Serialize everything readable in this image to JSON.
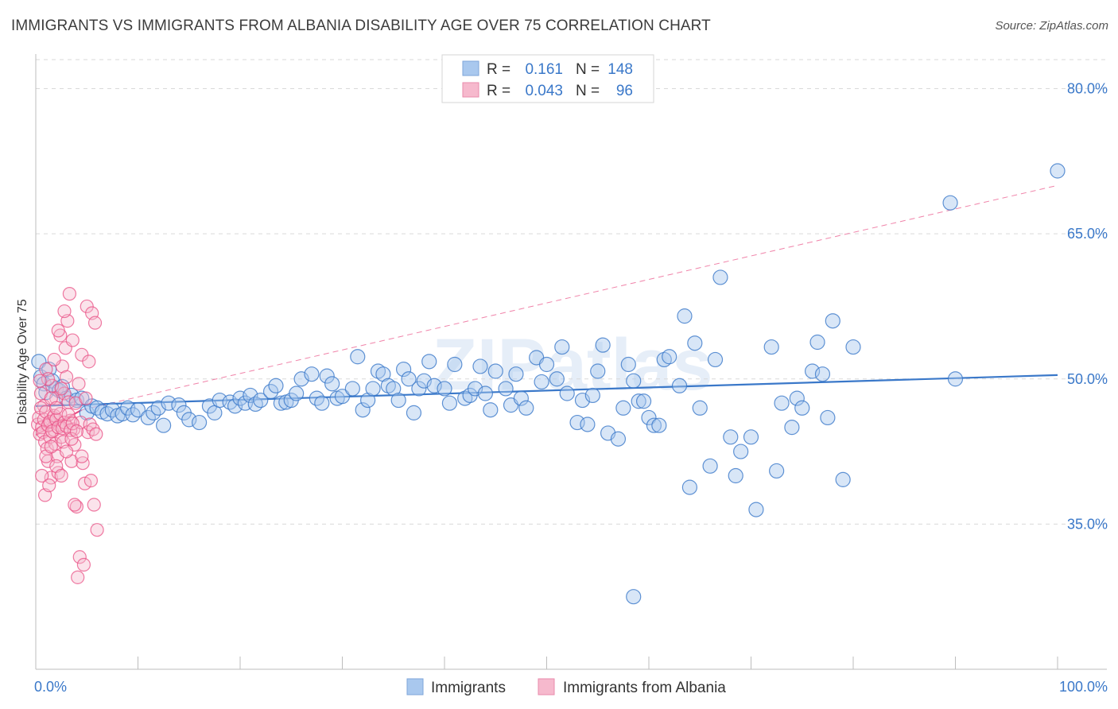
{
  "title": "IMMIGRANTS VS IMMIGRANTS FROM ALBANIA DISABILITY AGE OVER 75 CORRELATION CHART",
  "source": "Source: ZipAtlas.com",
  "watermark": "ZIPatlas",
  "legend_box": {
    "rows": [
      {
        "r_label": "R =",
        "r_value": "0.161",
        "n_label": "N =",
        "n_value": "148"
      },
      {
        "r_label": "R =",
        "r_value": "0.043",
        "n_label": "N =",
        "n_value": "96"
      }
    ]
  },
  "bottom_legend": [
    "Immigrants",
    "Immigrants from Albania"
  ],
  "colors": {
    "blue": "#3a78c9",
    "blue_fill": "#a9c8ee",
    "pink": "#e94f84",
    "pink_fill": "#f6b9cd",
    "grid": "#d9d9d9"
  },
  "chart_data": {
    "type": "scatter",
    "xlabel": "",
    "ylabel": "Disability Age Over 75",
    "xlim": [
      0,
      100
    ],
    "ylim": [
      20,
      83
    ],
    "x_tick_labels": [
      "0.0%",
      "100.0%"
    ],
    "y_ticks": [
      35,
      50,
      65,
      80
    ],
    "y_tick_labels": [
      "35.0%",
      "50.0%",
      "65.0%",
      "80.0%"
    ],
    "grid": true,
    "legend_position": "top-center",
    "series": [
      {
        "name": "Immigrants",
        "r": 0.161,
        "n": 148,
        "color": "#3a78c9",
        "trend": {
          "x": [
            0,
            100
          ],
          "y": [
            47.2,
            50.4
          ]
        },
        "points": [
          [
            0.3,
            51.8
          ],
          [
            0.5,
            50.2
          ],
          [
            0.8,
            49.5
          ],
          [
            1,
            48.6
          ],
          [
            1.3,
            51
          ],
          [
            1.6,
            49.8
          ],
          [
            2,
            49
          ],
          [
            2.3,
            48.8
          ],
          [
            2.6,
            49.2
          ],
          [
            3,
            48
          ],
          [
            3.5,
            48.3
          ],
          [
            4,
            47.8
          ],
          [
            4.5,
            48
          ],
          [
            5,
            46.5
          ],
          [
            5.5,
            47.2
          ],
          [
            6,
            47
          ],
          [
            6.5,
            46.6
          ],
          [
            7,
            46.4
          ],
          [
            7.5,
            46.8
          ],
          [
            8,
            46.2
          ],
          [
            8.5,
            46.4
          ],
          [
            9,
            47
          ],
          [
            9.5,
            46.3
          ],
          [
            10,
            46.8
          ],
          [
            11,
            46
          ],
          [
            11.5,
            46.5
          ],
          [
            12,
            47
          ],
          [
            12.5,
            45.2
          ],
          [
            13,
            47.5
          ],
          [
            14,
            47.3
          ],
          [
            14.5,
            46.5
          ],
          [
            15,
            45.8
          ],
          [
            16,
            45.5
          ],
          [
            17,
            47.2
          ],
          [
            17.5,
            46.5
          ],
          [
            18,
            47.8
          ],
          [
            19,
            47.6
          ],
          [
            19.5,
            47.2
          ],
          [
            20,
            48
          ],
          [
            20.5,
            47.5
          ],
          [
            21,
            48.3
          ],
          [
            21.5,
            47.4
          ],
          [
            22,
            47.8
          ],
          [
            23,
            48.7
          ],
          [
            23.5,
            49.3
          ],
          [
            24,
            47.5
          ],
          [
            24.5,
            47.6
          ],
          [
            25,
            47.8
          ],
          [
            25.5,
            48.5
          ],
          [
            26,
            50
          ],
          [
            27,
            50.5
          ],
          [
            27.5,
            48
          ],
          [
            28,
            47.5
          ],
          [
            28.5,
            50.3
          ],
          [
            29,
            49.5
          ],
          [
            29.5,
            48
          ],
          [
            30,
            48.2
          ],
          [
            31,
            49
          ],
          [
            31.5,
            52.3
          ],
          [
            32,
            46.8
          ],
          [
            32.5,
            47.8
          ],
          [
            33,
            49
          ],
          [
            33.5,
            50.8
          ],
          [
            34,
            50.5
          ],
          [
            34.5,
            49.3
          ],
          [
            35,
            49
          ],
          [
            35.5,
            47.8
          ],
          [
            36,
            51
          ],
          [
            36.5,
            50
          ],
          [
            37,
            46.5
          ],
          [
            37.5,
            49
          ],
          [
            38,
            49.8
          ],
          [
            38.5,
            51.8
          ],
          [
            39,
            49.3
          ],
          [
            40,
            49
          ],
          [
            40.5,
            47.5
          ],
          [
            41,
            51.5
          ],
          [
            42,
            48
          ],
          [
            42.5,
            48.3
          ],
          [
            43,
            49
          ],
          [
            43.5,
            51.3
          ],
          [
            44,
            48.5
          ],
          [
            44.5,
            46.8
          ],
          [
            45,
            50.8
          ],
          [
            46,
            49
          ],
          [
            46.5,
            47.3
          ],
          [
            47,
            50.5
          ],
          [
            47.5,
            48
          ],
          [
            48,
            47
          ],
          [
            49,
            52.2
          ],
          [
            49.5,
            49.7
          ],
          [
            50,
            51.5
          ],
          [
            51,
            50
          ],
          [
            51.5,
            53.3
          ],
          [
            52,
            48.5
          ],
          [
            53,
            45.5
          ],
          [
            53.5,
            47.8
          ],
          [
            54,
            45.3
          ],
          [
            54.5,
            48.3
          ],
          [
            55,
            50.8
          ],
          [
            55.5,
            53.5
          ],
          [
            56,
            44.4
          ],
          [
            57,
            43.8
          ],
          [
            57.5,
            47
          ],
          [
            58,
            51.5
          ],
          [
            58.5,
            49.8
          ],
          [
            59,
            47.7
          ],
          [
            59.5,
            47.7
          ],
          [
            60,
            46
          ],
          [
            60.5,
            45.2
          ],
          [
            61,
            45.2
          ],
          [
            61.5,
            52
          ],
          [
            62,
            52.3
          ],
          [
            63,
            49.3
          ],
          [
            63.5,
            56.5
          ],
          [
            64,
            38.8
          ],
          [
            64.5,
            53.7
          ],
          [
            65,
            47
          ],
          [
            66,
            41
          ],
          [
            66.5,
            52
          ],
          [
            67,
            60.5
          ],
          [
            68,
            44
          ],
          [
            68.5,
            40
          ],
          [
            69,
            42.5
          ],
          [
            70,
            44
          ],
          [
            70.5,
            36.5
          ],
          [
            72,
            53.3
          ],
          [
            72.5,
            40.5
          ],
          [
            73,
            47.5
          ],
          [
            74,
            45
          ],
          [
            74.5,
            48
          ],
          [
            75,
            47
          ],
          [
            76,
            50.8
          ],
          [
            76.5,
            53.8
          ],
          [
            77,
            50.5
          ],
          [
            77.5,
            46
          ],
          [
            78,
            56
          ],
          [
            79,
            39.6
          ],
          [
            80,
            53.3
          ],
          [
            90,
            50
          ],
          [
            89.5,
            68.2
          ],
          [
            100,
            71.5
          ],
          [
            58.5,
            27.5
          ]
        ]
      },
      {
        "name": "Immigrants from Albania",
        "r": 0.043,
        "n": 96,
        "color": "#e94f84",
        "trend": {
          "x": [
            0,
            4.5
          ],
          "y": [
            44.2,
            46.8
          ]
        },
        "trend_dashed": {
          "x": [
            4.5,
            100
          ],
          "y": [
            46.8,
            70
          ]
        },
        "points": [
          [
            0.2,
            45.3
          ],
          [
            0.3,
            46
          ],
          [
            0.4,
            44.3
          ],
          [
            0.5,
            48.5
          ],
          [
            0.6,
            45
          ],
          [
            0.7,
            44.5
          ],
          [
            0.8,
            47.2
          ],
          [
            0.9,
            43.5
          ],
          [
            1,
            51
          ],
          [
            1.1,
            42.8
          ],
          [
            1.2,
            41.5
          ],
          [
            1.3,
            45.5
          ],
          [
            1.4,
            44
          ],
          [
            1.5,
            39.8
          ],
          [
            1.6,
            49.3
          ],
          [
            1.7,
            46
          ],
          [
            1.8,
            44.7
          ],
          [
            1.9,
            43.3
          ],
          [
            2,
            48
          ],
          [
            2.1,
            42
          ],
          [
            2.2,
            40.3
          ],
          [
            2.3,
            45.2
          ],
          [
            2.4,
            54.5
          ],
          [
            2.5,
            44
          ],
          [
            2.6,
            51.3
          ],
          [
            2.7,
            43.5
          ],
          [
            2.8,
            48.5
          ],
          [
            2.9,
            53.2
          ],
          [
            3,
            50.2
          ],
          [
            3.1,
            56
          ],
          [
            3.2,
            47.6
          ],
          [
            3.3,
            58.8
          ],
          [
            3.4,
            45.7
          ],
          [
            3.5,
            41.5
          ],
          [
            3.6,
            54
          ],
          [
            3.7,
            44.8
          ],
          [
            3.8,
            43.2
          ],
          [
            3.9,
            47.5
          ],
          [
            4,
            36.8
          ],
          [
            4.1,
            29.5
          ],
          [
            4.2,
            49.5
          ],
          [
            4.3,
            31.6
          ],
          [
            4.4,
            45.5
          ],
          [
            4.5,
            52.5
          ],
          [
            4.6,
            41.3
          ],
          [
            4.7,
            30.8
          ],
          [
            4.8,
            39.2
          ],
          [
            4.9,
            48
          ],
          [
            5,
            57.5
          ],
          [
            5.1,
            44.5
          ],
          [
            5.2,
            51.8
          ],
          [
            5.3,
            45.3
          ],
          [
            5.4,
            39.5
          ],
          [
            5.5,
            56.8
          ],
          [
            5.6,
            44.8
          ],
          [
            5.7,
            37
          ],
          [
            5.8,
            55.8
          ],
          [
            5.9,
            44.3
          ],
          [
            6,
            34.4
          ],
          [
            0.5,
            47
          ],
          [
            0.8,
            45.8
          ],
          [
            1,
            46.6
          ],
          [
            1.2,
            45.2
          ],
          [
            1.4,
            45.6
          ],
          [
            1.6,
            44.6
          ],
          [
            1.8,
            46.2
          ],
          [
            2,
            45.8
          ],
          [
            2.2,
            45
          ],
          [
            2.4,
            46.4
          ],
          [
            2.6,
            44.9
          ],
          [
            2.8,
            45.5
          ],
          [
            3,
            45.1
          ],
          [
            3.2,
            46.3
          ],
          [
            3.4,
            44.7
          ],
          [
            3.6,
            45.4
          ],
          [
            1.5,
            48
          ],
          [
            2,
            47
          ],
          [
            2.5,
            49
          ],
          [
            1,
            42
          ],
          [
            1.5,
            43
          ],
          [
            2,
            41
          ],
          [
            2.5,
            40
          ],
          [
            3,
            42.5
          ],
          [
            3.5,
            43.8
          ],
          [
            4,
            44.6
          ],
          [
            1.2,
            50
          ],
          [
            1.8,
            52
          ],
          [
            2.2,
            55
          ],
          [
            2.8,
            57
          ],
          [
            0.6,
            40
          ],
          [
            0.9,
            38
          ],
          [
            1.3,
            39
          ],
          [
            3.8,
            37
          ],
          [
            4.5,
            42
          ],
          [
            0.4,
            49.8
          ]
        ]
      }
    ]
  }
}
